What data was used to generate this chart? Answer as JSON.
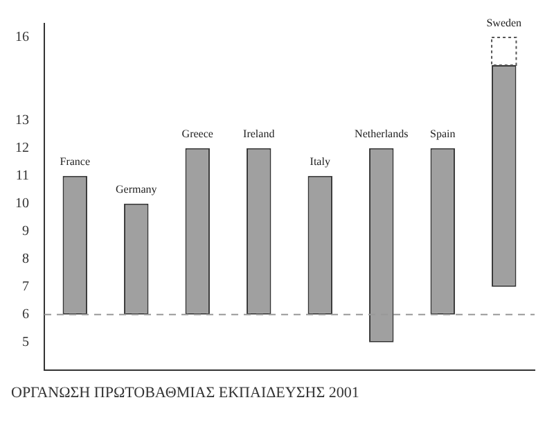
{
  "chart_data": {
    "type": "bar",
    "title": "ΟΡΓΑΝΩΣΗ ΠΡΩΤΟΒΑΘΜΙΑΣ ΕΚΠΑΙΔΕΥΣΗΣ 2001",
    "categories": [
      "France",
      "Germany",
      "Greece",
      "Ireland",
      "Italy",
      "Netherlands",
      "Spain",
      "Sweden"
    ],
    "series": [
      {
        "color": "#a0a0a0",
        "base": [
          6,
          6,
          6,
          6,
          6,
          5,
          6,
          7
        ],
        "values": [
          5,
          4,
          6,
          6,
          5,
          7,
          6,
          8
        ]
      },
      {
        "color": "#ffffff",
        "line_style": "dotted",
        "base": [
          null,
          null,
          null,
          null,
          null,
          null,
          null,
          15
        ],
        "values": [
          null,
          null,
          null,
          null,
          null,
          null,
          null,
          1
        ]
      }
    ],
    "ylim": [
      4,
      16.5
    ],
    "yticks": [
      5,
      6,
      7,
      8,
      9,
      10,
      11,
      12,
      13,
      16
    ],
    "ref_lines": [
      {
        "axis": "y",
        "value": 6,
        "color": "#999999",
        "line_style": "dashed"
      }
    ],
    "tick_labels": "y",
    "grid": false,
    "legend": false
  }
}
